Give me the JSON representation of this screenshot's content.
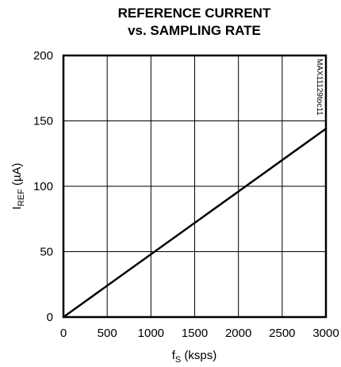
{
  "chart_data": {
    "type": "line",
    "title_lines": [
      "REFERENCE CURRENT",
      "vs. SAMPLING RATE"
    ],
    "xlabel": {
      "main": "f",
      "sub": "S",
      "rest": " (ksps)"
    },
    "ylabel": {
      "main": "I",
      "sub": "REF",
      "rest": " (µA)"
    },
    "xlim": [
      0,
      3000
    ],
    "ylim": [
      0,
      200
    ],
    "xticks": [
      0,
      500,
      1000,
      1500,
      2000,
      2500,
      3000
    ],
    "yticks": [
      0,
      50,
      100,
      150,
      200
    ],
    "xtick_labels": [
      "0",
      "500",
      "1000",
      "1500",
      "2000",
      "2500",
      "3000"
    ],
    "ytick_labels": [
      "0",
      "50",
      "100",
      "150",
      "200"
    ],
    "grid": true,
    "legend": "none",
    "series": [
      {
        "x": [
          0,
          3000
        ],
        "y": [
          0,
          144
        ]
      }
    ],
    "annotation": "MAX11129toc11",
    "colors": {
      "line": "#000000",
      "grid": "#000000",
      "background": "#ffffff"
    }
  }
}
